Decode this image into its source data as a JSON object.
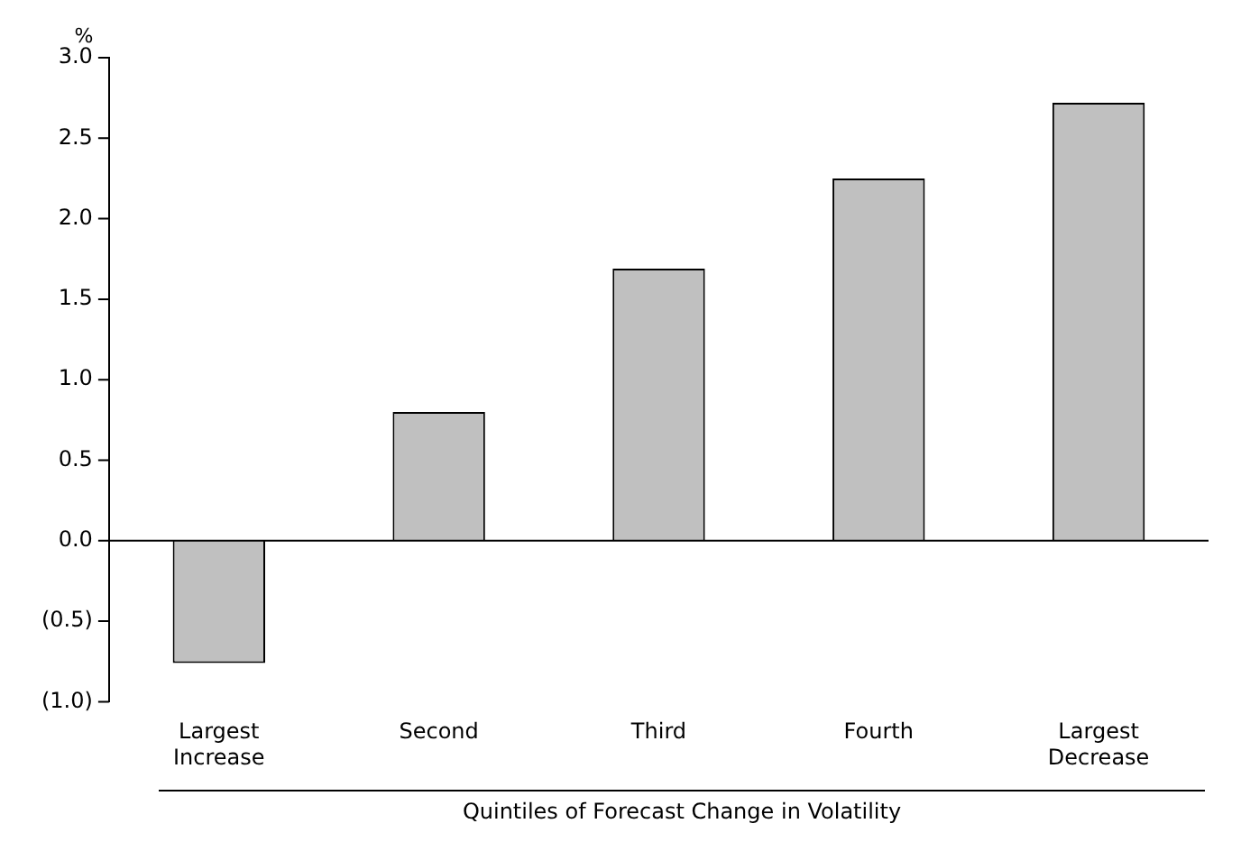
{
  "chart_data": {
    "type": "bar",
    "ylabel": "%",
    "xlabel": "Quintiles of Forecast Change in Volatility",
    "categories": [
      "Largest Increase",
      "Second",
      "Third",
      "Fourth",
      "Largest Decrease"
    ],
    "values": [
      -0.76,
      0.8,
      1.69,
      2.25,
      2.72
    ],
    "color": "#c0c0c0",
    "ylim": [
      -1.0,
      3.0
    ],
    "yticks": [
      {
        "value": -1.0,
        "label": "(1.0)"
      },
      {
        "value": -0.5,
        "label": "(0.5)"
      },
      {
        "value": 0,
        "label": "0.0"
      },
      {
        "value": 0.5,
        "label": "0.5"
      },
      {
        "value": 1.0,
        "label": "1.0"
      },
      {
        "value": 1.5,
        "label": "1.5"
      },
      {
        "value": 2.0,
        "label": "2.0"
      },
      {
        "value": 2.5,
        "label": "2.5"
      },
      {
        "value": 3.0,
        "label": "3.0"
      }
    ],
    "legend": false
  }
}
